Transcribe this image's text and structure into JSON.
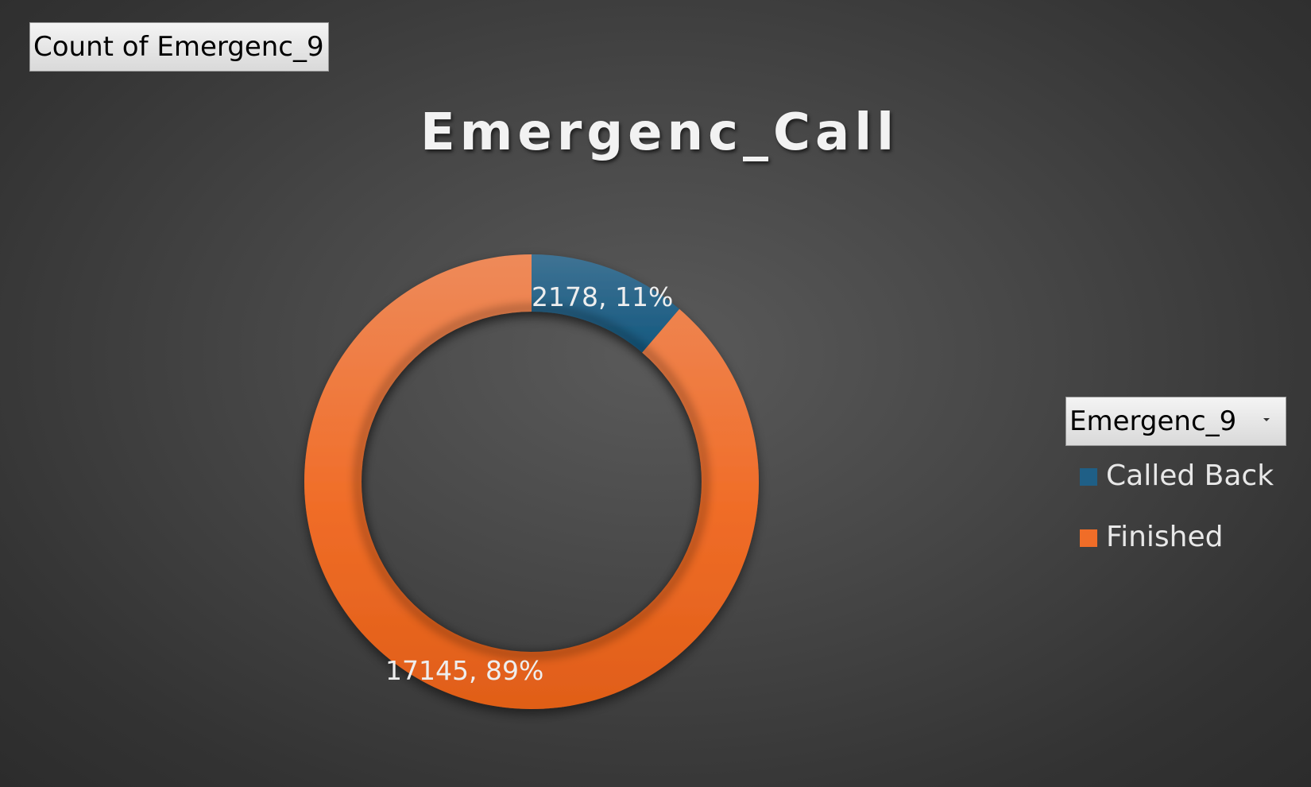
{
  "pivot": {
    "value_field_label": "Count of Emergenc_9",
    "axis_field_label": "Emergenc_9"
  },
  "chart_data": {
    "type": "pie",
    "style": "doughnut",
    "title": "Emergenc_Call",
    "categories": [
      "Called Back",
      "Finished"
    ],
    "values": [
      2178,
      17145
    ],
    "percent_labels": [
      "11%",
      "89%"
    ],
    "data_labels": [
      "2178, 11%",
      "17145, 89%"
    ],
    "colors": [
      "#1f5f86",
      "#f06d28"
    ],
    "legend_position": "right"
  }
}
